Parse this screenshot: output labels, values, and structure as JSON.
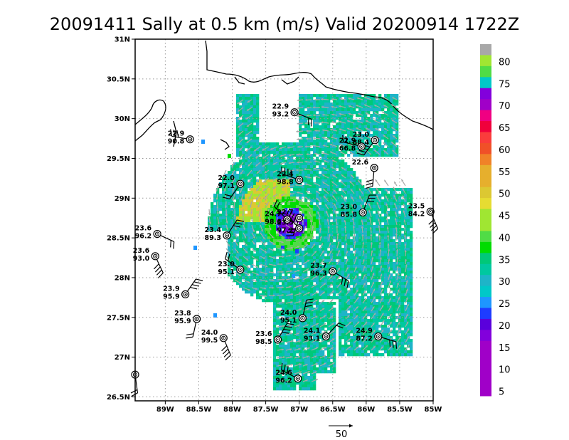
{
  "title": "20091411 Sally at 0.5 km (m/s) Valid 20200914 1722Z",
  "axes": {
    "lon_range": [
      -89.45,
      -85.0
    ],
    "lat_range": [
      26.45,
      31.0
    ],
    "x_ticks": [
      {
        "value": -89.0,
        "label": "89W"
      },
      {
        "value": -88.5,
        "label": "88.5W"
      },
      {
        "value": -88.0,
        "label": "88W"
      },
      {
        "value": -87.5,
        "label": "87.5W"
      },
      {
        "value": -87.0,
        "label": "87W"
      },
      {
        "value": -86.5,
        "label": "86.5W"
      },
      {
        "value": -86.0,
        "label": "86W"
      },
      {
        "value": -85.5,
        "label": "85.5W"
      },
      {
        "value": -85.0,
        "label": "85W"
      }
    ],
    "y_ticks": [
      {
        "value": 26.5,
        "label": "26.5N"
      },
      {
        "value": 27.0,
        "label": "27N"
      },
      {
        "value": 27.5,
        "label": "27.5N"
      },
      {
        "value": 28.0,
        "label": "28N"
      },
      {
        "value": 28.5,
        "label": "28.5N"
      },
      {
        "value": 29.0,
        "label": "29N"
      },
      {
        "value": 29.5,
        "label": "29.5N"
      },
      {
        "value": 30.0,
        "label": "30N"
      },
      {
        "value": 30.5,
        "label": "30.5N"
      },
      {
        "value": 31.0,
        "label": "31N"
      }
    ],
    "grid": true
  },
  "colorbar": {
    "levels": [
      {
        "label": "80",
        "color": "#a8a8a8"
      },
      {
        "label": "",
        "color": "#a0e632"
      },
      {
        "label": "75",
        "color": "#50dc46"
      },
      {
        "label": "",
        "color": "#00c8c8"
      },
      {
        "label": "70",
        "color": "#8200dc"
      },
      {
        "label": "",
        "color": "#a000c8"
      },
      {
        "label": "65",
        "color": "#f00082"
      },
      {
        "label": "",
        "color": "#f0003c"
      },
      {
        "label": "60",
        "color": "#fa3c3c"
      },
      {
        "label": "",
        "color": "#f05028"
      },
      {
        "label": "55",
        "color": "#f08228"
      },
      {
        "label": "",
        "color": "#e6af2d"
      },
      {
        "label": "50",
        "color": "#e6af2d"
      },
      {
        "label": "",
        "color": "#dcc832"
      },
      {
        "label": "45",
        "color": "#e6dc32"
      },
      {
        "label": "",
        "color": "#a0e632"
      },
      {
        "label": "40",
        "color": "#a0e632"
      },
      {
        "label": "",
        "color": "#50dc46"
      },
      {
        "label": "35",
        "color": "#00dc00"
      },
      {
        "label": "",
        "color": "#00c878"
      },
      {
        "label": "30",
        "color": "#00c8a0"
      },
      {
        "label": "",
        "color": "#1eb4c8"
      },
      {
        "label": "25",
        "color": "#00c8c8"
      },
      {
        "label": "",
        "color": "#1e96ff"
      },
      {
        "label": "20",
        "color": "#1e3cff"
      },
      {
        "label": "",
        "color": "#5a00dc"
      },
      {
        "label": "15",
        "color": "#8200dc"
      },
      {
        "label": "",
        "color": "#a000c8"
      },
      {
        "label": "10",
        "color": "#a000c8"
      },
      {
        "label": "",
        "color": "#a000c8"
      },
      {
        "label": "5",
        "color": "#a000c8"
      },
      {
        "label": "",
        "color": "#a000c8"
      }
    ]
  },
  "reference_vector": {
    "label": "50"
  },
  "stations": [
    {
      "lon": -87.07,
      "lat": 30.08,
      "t": "22.9",
      "p": "93.2"
    },
    {
      "lon": -88.63,
      "lat": 29.74,
      "t": "22.9",
      "p": "90.8"
    },
    {
      "lon": -85.87,
      "lat": 29.73,
      "t": "23.0",
      "p": "88.4"
    },
    {
      "lon": -86.07,
      "lat": 29.65,
      "t": "22.9",
      "p": "66.8"
    },
    {
      "lon": -85.88,
      "lat": 29.38,
      "t": "22.6",
      "p": ""
    },
    {
      "lon": -87.0,
      "lat": 29.23,
      "t": "22.4",
      "p": "98.8"
    },
    {
      "lon": -87.88,
      "lat": 29.18,
      "t": "22.0",
      "p": "97.1"
    },
    {
      "lon": -86.05,
      "lat": 28.82,
      "t": "23.0",
      "p": "85.8"
    },
    {
      "lon": -85.04,
      "lat": 28.83,
      "t": "23.5",
      "p": "84.2"
    },
    {
      "lon": -87.18,
      "lat": 28.73,
      "t": "24.7",
      "p": "98.6"
    },
    {
      "lon": -87.0,
      "lat": 28.75,
      "t": "22.7",
      "p": ""
    },
    {
      "lon": -87.0,
      "lat": 28.62,
      "t": "23.5",
      "p": "97.2"
    },
    {
      "lon": -89.12,
      "lat": 28.55,
      "t": "23.6",
      "p": "96.2"
    },
    {
      "lon": -88.08,
      "lat": 28.53,
      "t": "23.4",
      "p": "89.3"
    },
    {
      "lon": -89.15,
      "lat": 28.27,
      "t": "23.6",
      "p": "93.0"
    },
    {
      "lon": -87.88,
      "lat": 28.1,
      "t": "23.0",
      "p": "95.1"
    },
    {
      "lon": -86.5,
      "lat": 28.08,
      "t": "23.7",
      "p": "96.3"
    },
    {
      "lon": -88.7,
      "lat": 27.79,
      "t": "23.9",
      "p": "95.9"
    },
    {
      "lon": -88.53,
      "lat": 27.48,
      "t": "23.8",
      "p": "95.9"
    },
    {
      "lon": -86.95,
      "lat": 27.49,
      "t": "24.0",
      "p": "95.1"
    },
    {
      "lon": -88.13,
      "lat": 27.24,
      "t": "24.0",
      "p": "99.5"
    },
    {
      "lon": -86.6,
      "lat": 27.26,
      "t": "24.1",
      "p": "93.1"
    },
    {
      "lon": -85.82,
      "lat": 27.26,
      "t": "24.9",
      "p": "87.2"
    },
    {
      "lon": -87.32,
      "lat": 27.22,
      "t": "23.6",
      "p": "98.5"
    },
    {
      "lon": -89.45,
      "lat": 26.78,
      "t": "",
      "p": ""
    },
    {
      "lon": -87.02,
      "lat": 26.73,
      "t": "24.6",
      "p": "96.2"
    }
  ]
}
